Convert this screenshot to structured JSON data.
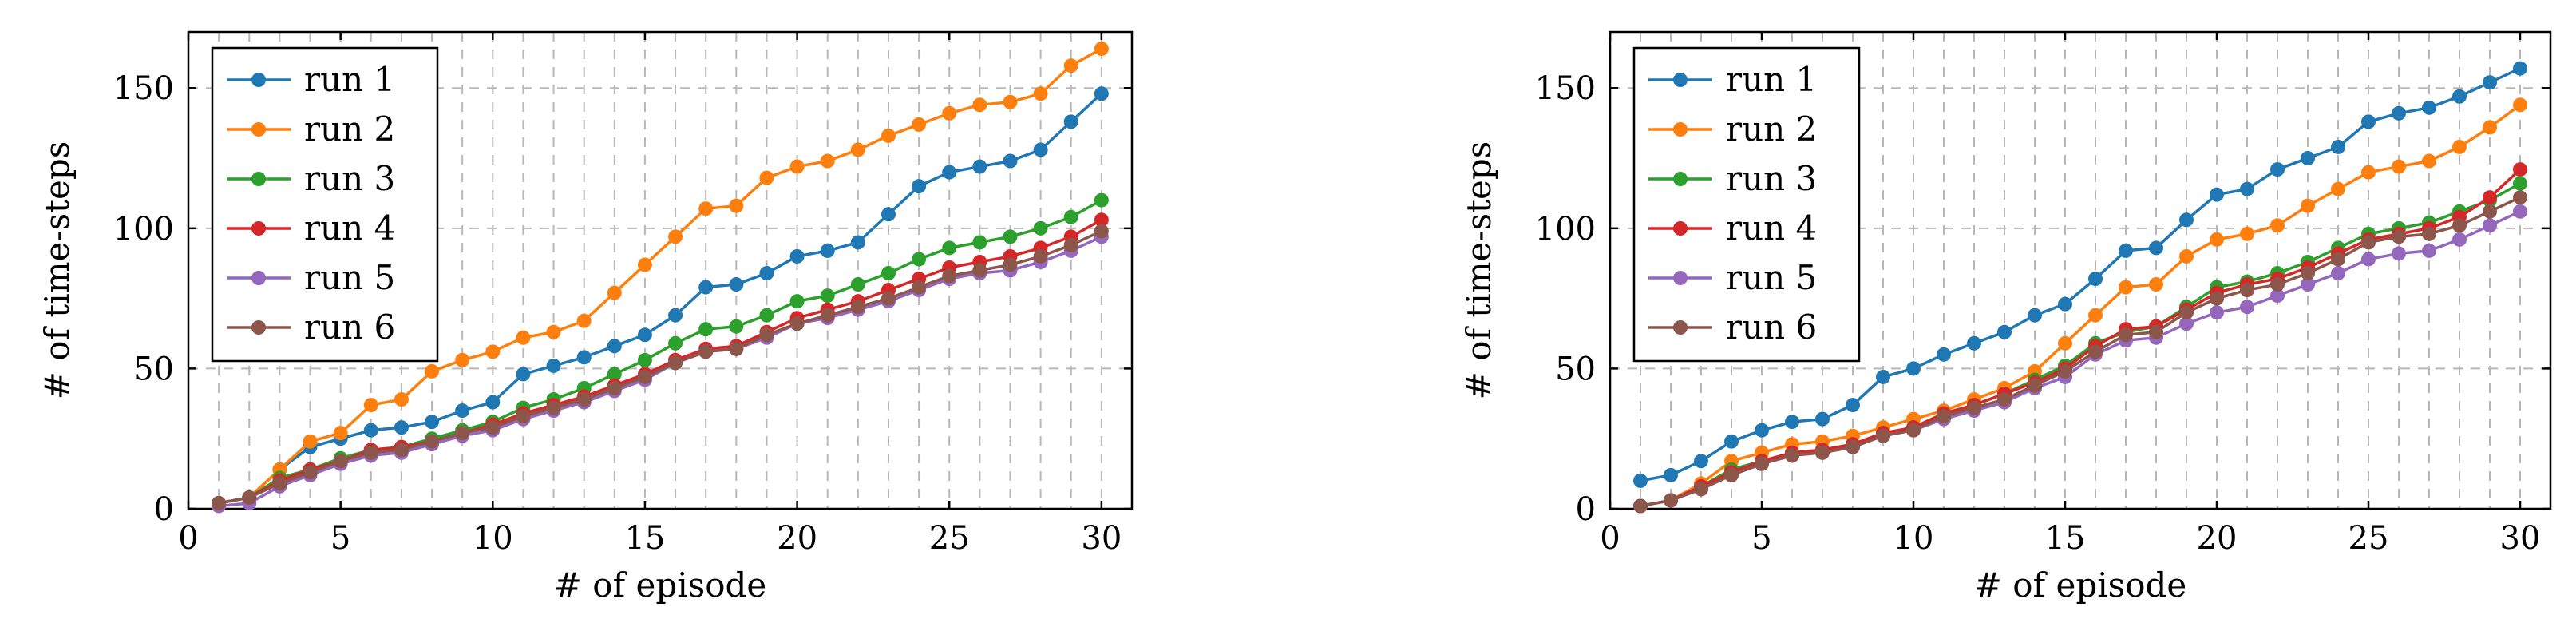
{
  "chart_data": [
    {
      "type": "line",
      "title": "",
      "xlabel": "# of episode",
      "ylabel": "# of time-steps",
      "xlim": [
        0,
        31
      ],
      "ylim": [
        0,
        170
      ],
      "xticks": [
        0,
        5,
        10,
        15,
        20,
        25,
        30
      ],
      "yticks": [
        0,
        50,
        100,
        150
      ],
      "grid": true,
      "legend": "top-left",
      "x": [
        1,
        2,
        3,
        4,
        5,
        6,
        7,
        8,
        9,
        10,
        11,
        12,
        13,
        14,
        15,
        16,
        17,
        18,
        19,
        20,
        21,
        22,
        23,
        24,
        25,
        26,
        27,
        28,
        29,
        30
      ],
      "series": [
        {
          "name": "run 1",
          "color": "#1f77b4",
          "values": [
            2,
            4,
            14,
            22,
            25,
            28,
            29,
            31,
            35,
            38,
            48,
            51,
            54,
            58,
            62,
            69,
            79,
            80,
            84,
            90,
            92,
            95,
            105,
            115,
            120,
            122,
            124,
            128,
            138,
            148
          ]
        },
        {
          "name": "run 2",
          "color": "#ff7f0e",
          "values": [
            2,
            4,
            14,
            24,
            27,
            37,
            39,
            49,
            53,
            56,
            61,
            63,
            67,
            77,
            87,
            97,
            107,
            108,
            118,
            122,
            124,
            128,
            133,
            137,
            141,
            144,
            145,
            148,
            158,
            164
          ]
        },
        {
          "name": "run 3",
          "color": "#2ca02c",
          "values": [
            2,
            4,
            11,
            14,
            18,
            21,
            22,
            25,
            28,
            31,
            36,
            39,
            43,
            48,
            53,
            59,
            64,
            65,
            69,
            74,
            76,
            80,
            84,
            89,
            93,
            95,
            97,
            100,
            104,
            110
          ]
        },
        {
          "name": "run 4",
          "color": "#d62728",
          "values": [
            2,
            4,
            10,
            14,
            17,
            21,
            22,
            24,
            27,
            30,
            34,
            37,
            40,
            44,
            48,
            53,
            57,
            58,
            63,
            68,
            71,
            74,
            78,
            82,
            86,
            88,
            90,
            93,
            97,
            103
          ]
        },
        {
          "name": "run 5",
          "color": "#9467bd",
          "values": [
            1,
            2,
            8,
            12,
            16,
            19,
            20,
            23,
            26,
            28,
            32,
            35,
            38,
            42,
            46,
            52,
            56,
            57,
            61,
            66,
            68,
            71,
            74,
            78,
            82,
            84,
            85,
            88,
            92,
            97
          ]
        },
        {
          "name": "run 6",
          "color": "#8c564b",
          "values": [
            2,
            4,
            9,
            13,
            17,
            20,
            21,
            24,
            27,
            29,
            33,
            36,
            39,
            43,
            47,
            52,
            56,
            57,
            62,
            66,
            69,
            72,
            75,
            79,
            83,
            85,
            87,
            90,
            94,
            99
          ]
        }
      ]
    },
    {
      "type": "line",
      "title": "",
      "xlabel": "# of episode",
      "ylabel": "# of time-steps",
      "xlim": [
        0,
        31
      ],
      "ylim": [
        0,
        170
      ],
      "xticks": [
        0,
        5,
        10,
        15,
        20,
        25,
        30
      ],
      "yticks": [
        0,
        50,
        100,
        150
      ],
      "grid": true,
      "legend": "top-left",
      "x": [
        1,
        2,
        3,
        4,
        5,
        6,
        7,
        8,
        9,
        10,
        11,
        12,
        13,
        14,
        15,
        16,
        17,
        18,
        19,
        20,
        21,
        22,
        23,
        24,
        25,
        26,
        27,
        28,
        29,
        30
      ],
      "series": [
        {
          "name": "run 1",
          "color": "#1f77b4",
          "values": [
            10,
            12,
            17,
            24,
            28,
            31,
            32,
            37,
            47,
            50,
            55,
            59,
            63,
            69,
            73,
            82,
            92,
            93,
            103,
            112,
            114,
            121,
            125,
            129,
            138,
            141,
            143,
            147,
            152,
            157
          ]
        },
        {
          "name": "run 2",
          "color": "#ff7f0e",
          "values": [
            1,
            3,
            9,
            17,
            20,
            23,
            24,
            26,
            29,
            32,
            35,
            39,
            43,
            49,
            59,
            69,
            79,
            80,
            90,
            96,
            98,
            101,
            108,
            114,
            120,
            122,
            124,
            129,
            136,
            144
          ]
        },
        {
          "name": "run 3",
          "color": "#2ca02c",
          "values": [
            1,
            3,
            8,
            14,
            17,
            20,
            21,
            23,
            27,
            29,
            34,
            37,
            41,
            46,
            51,
            59,
            63,
            65,
            72,
            79,
            81,
            84,
            88,
            93,
            98,
            100,
            102,
            106,
            110,
            116
          ]
        },
        {
          "name": "run 4",
          "color": "#d62728",
          "values": [
            1,
            3,
            8,
            13,
            17,
            20,
            21,
            23,
            27,
            29,
            34,
            37,
            41,
            45,
            50,
            58,
            64,
            65,
            71,
            77,
            80,
            82,
            86,
            91,
            96,
            98,
            100,
            104,
            111,
            121
          ]
        },
        {
          "name": "run 5",
          "color": "#9467bd",
          "values": [
            1,
            3,
            7,
            12,
            16,
            19,
            20,
            22,
            26,
            28,
            32,
            35,
            38,
            43,
            47,
            55,
            60,
            61,
            66,
            70,
            72,
            76,
            80,
            84,
            89,
            91,
            92,
            96,
            101,
            106
          ]
        },
        {
          "name": "run 6",
          "color": "#8c564b",
          "values": [
            1,
            3,
            7,
            12,
            16,
            19,
            20,
            22,
            26,
            28,
            33,
            36,
            39,
            44,
            49,
            56,
            62,
            63,
            70,
            75,
            78,
            80,
            84,
            89,
            95,
            97,
            98,
            101,
            106,
            111
          ]
        }
      ]
    }
  ]
}
